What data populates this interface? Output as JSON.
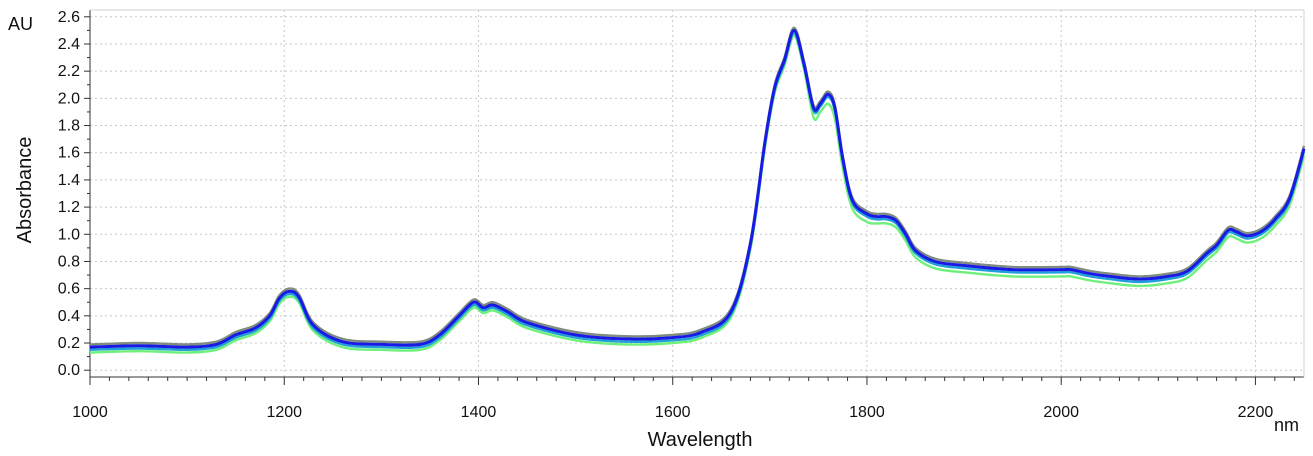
{
  "chart_data": {
    "type": "line",
    "xlabel": "Wavelength",
    "ylabel": "Absorbance",
    "x_unit": "nm",
    "y_unit": "AU",
    "xlim": [
      1000,
      2250
    ],
    "ylim": [
      -0.05,
      2.65
    ],
    "x_ticks": [
      "1000",
      "1200",
      "1400",
      "1600",
      "1800",
      "2000",
      "2200"
    ],
    "y_ticks": [
      "0.0",
      "0.2",
      "0.4",
      "0.6",
      "0.8",
      "1.0",
      "1.2",
      "1.4",
      "1.6",
      "1.8",
      "2.0",
      "2.2",
      "2.4",
      "2.6"
    ],
    "grid": true,
    "x": [
      1000,
      1050,
      1100,
      1130,
      1150,
      1170,
      1185,
      1195,
      1205,
      1215,
      1230,
      1260,
      1300,
      1340,
      1360,
      1380,
      1395,
      1405,
      1415,
      1430,
      1450,
      1500,
      1550,
      1600,
      1630,
      1660,
      1680,
      1695,
      1705,
      1715,
      1725,
      1735,
      1745,
      1752,
      1760,
      1767,
      1775,
      1785,
      1800,
      1810,
      1820,
      1830,
      1840,
      1850,
      1870,
      1900,
      1950,
      2000,
      2010,
      2030,
      2050,
      2080,
      2110,
      2130,
      2150,
      2160,
      2172,
      2180,
      2190,
      2200,
      2210,
      2220,
      2235,
      2250
    ],
    "series": [
      {
        "values": [
          0.19,
          0.2,
          0.19,
          0.21,
          0.28,
          0.33,
          0.42,
          0.55,
          0.6,
          0.56,
          0.35,
          0.23,
          0.21,
          0.21,
          0.28,
          0.42,
          0.52,
          0.48,
          0.5,
          0.45,
          0.37,
          0.28,
          0.25,
          0.26,
          0.3,
          0.45,
          0.95,
          1.7,
          2.1,
          2.3,
          2.52,
          2.28,
          1.95,
          1.98,
          2.05,
          1.95,
          1.58,
          1.27,
          1.17,
          1.15,
          1.15,
          1.12,
          1.02,
          0.9,
          0.82,
          0.79,
          0.76,
          0.76,
          0.76,
          0.73,
          0.71,
          0.69,
          0.71,
          0.75,
          0.88,
          0.94,
          1.05,
          1.04,
          1.01,
          1.02,
          1.06,
          1.13,
          1.28,
          1.65
        ],
        "color": "#7f8c7f"
      },
      {
        "values": [
          0.17,
          0.18,
          0.17,
          0.19,
          0.26,
          0.31,
          0.4,
          0.53,
          0.58,
          0.54,
          0.33,
          0.21,
          0.19,
          0.19,
          0.26,
          0.4,
          0.5,
          0.46,
          0.48,
          0.43,
          0.35,
          0.26,
          0.23,
          0.24,
          0.28,
          0.43,
          0.93,
          1.68,
          2.08,
          2.28,
          2.5,
          2.26,
          1.93,
          1.96,
          2.03,
          1.93,
          1.56,
          1.25,
          1.15,
          1.13,
          1.13,
          1.1,
          1.0,
          0.88,
          0.8,
          0.77,
          0.74,
          0.74,
          0.74,
          0.71,
          0.69,
          0.67,
          0.69,
          0.73,
          0.86,
          0.92,
          1.03,
          1.02,
          0.99,
          1.0,
          1.04,
          1.11,
          1.26,
          1.63
        ],
        "color": "#1a1ae6"
      },
      {
        "values": [
          0.15,
          0.16,
          0.15,
          0.17,
          0.24,
          0.29,
          0.38,
          0.51,
          0.56,
          0.52,
          0.31,
          0.19,
          0.17,
          0.17,
          0.24,
          0.38,
          0.48,
          0.44,
          0.46,
          0.41,
          0.33,
          0.24,
          0.21,
          0.22,
          0.26,
          0.41,
          0.91,
          1.66,
          2.06,
          2.26,
          2.48,
          2.24,
          1.91,
          1.94,
          2.01,
          1.91,
          1.54,
          1.23,
          1.13,
          1.11,
          1.11,
          1.08,
          0.98,
          0.86,
          0.78,
          0.75,
          0.72,
          0.72,
          0.72,
          0.69,
          0.67,
          0.65,
          0.67,
          0.71,
          0.84,
          0.9,
          1.01,
          1.0,
          0.97,
          0.98,
          1.02,
          1.09,
          1.24,
          1.61
        ],
        "color": "#1f9fd8"
      },
      {
        "values": [
          0.13,
          0.14,
          0.13,
          0.15,
          0.22,
          0.27,
          0.36,
          0.49,
          0.54,
          0.5,
          0.29,
          0.17,
          0.15,
          0.15,
          0.22,
          0.36,
          0.46,
          0.42,
          0.44,
          0.39,
          0.31,
          0.22,
          0.19,
          0.2,
          0.24,
          0.39,
          0.89,
          1.64,
          2.04,
          2.24,
          2.46,
          2.22,
          1.86,
          1.9,
          1.96,
          1.85,
          1.49,
          1.19,
          1.09,
          1.08,
          1.08,
          1.05,
          0.95,
          0.83,
          0.75,
          0.72,
          0.69,
          0.69,
          0.69,
          0.66,
          0.64,
          0.62,
          0.64,
          0.68,
          0.81,
          0.87,
          0.98,
          0.97,
          0.94,
          0.95,
          0.99,
          1.06,
          1.21,
          1.58
        ],
        "color": "#6ef07a"
      }
    ]
  }
}
